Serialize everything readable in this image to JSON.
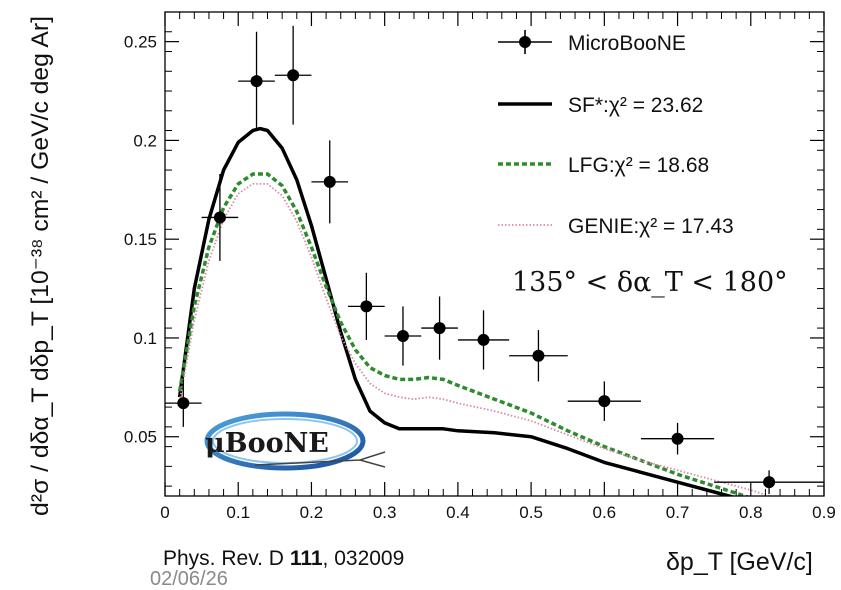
{
  "chart_data": {
    "type": "line",
    "xlabel": "δp_T [GeV/c]",
    "ylabel": "d²σ / dδα_T dδp_T  [10⁻³⁸ cm² / GeV/c deg Ar]",
    "xlim": [
      0,
      0.9
    ],
    "ylim": [
      0.02,
      0.265
    ],
    "x_ticks": [
      "0",
      "0.1",
      "0.2",
      "0.3",
      "0.4",
      "0.5",
      "0.6",
      "0.7",
      "0.8",
      "0.9"
    ],
    "y_ticks": [
      "0.05",
      "0.1",
      "0.15",
      "0.2",
      "0.25"
    ],
    "annotation": "135° < δα_T < 180°",
    "series": [
      {
        "name": "MicroBooNE",
        "legend_label": "MicroBooNE",
        "kind": "points",
        "color": "#000000",
        "x": [
          0.025,
          0.075,
          0.125,
          0.175,
          0.225,
          0.275,
          0.325,
          0.375,
          0.435,
          0.51,
          0.6,
          0.7,
          0.825
        ],
        "y": [
          0.067,
          0.161,
          0.23,
          0.233,
          0.179,
          0.116,
          0.101,
          0.105,
          0.099,
          0.091,
          0.068,
          0.049,
          0.027
        ],
        "xerr": [
          0.025,
          0.025,
          0.025,
          0.025,
          0.025,
          0.025,
          0.025,
          0.025,
          0.035,
          0.04,
          0.05,
          0.05,
          0.075
        ],
        "yerr": [
          0.012,
          0.022,
          0.025,
          0.025,
          0.021,
          0.017,
          0.015,
          0.016,
          0.015,
          0.013,
          0.01,
          0.008,
          0.006
        ]
      },
      {
        "name": "SF*",
        "legend_label": "SF*:χ² = 23.62",
        "kind": "line",
        "style": "solid",
        "color": "#000000",
        "x": [
          0.02,
          0.04,
          0.06,
          0.08,
          0.1,
          0.12,
          0.13,
          0.14,
          0.16,
          0.18,
          0.2,
          0.22,
          0.24,
          0.26,
          0.28,
          0.3,
          0.32,
          0.34,
          0.36,
          0.38,
          0.4,
          0.45,
          0.5,
          0.55,
          0.6,
          0.65,
          0.7,
          0.75,
          0.8,
          0.825
        ],
        "y": [
          0.07,
          0.125,
          0.16,
          0.185,
          0.199,
          0.205,
          0.206,
          0.205,
          0.196,
          0.18,
          0.157,
          0.13,
          0.103,
          0.079,
          0.063,
          0.057,
          0.054,
          0.054,
          0.054,
          0.054,
          0.053,
          0.052,
          0.05,
          0.044,
          0.037,
          0.032,
          0.027,
          0.022,
          0.017,
          0.015
        ]
      },
      {
        "name": "LFG",
        "legend_label": "LFG:χ² = 18.68",
        "kind": "line",
        "style": "dashed",
        "color": "#2e8b2e",
        "x": [
          0.02,
          0.04,
          0.06,
          0.08,
          0.1,
          0.12,
          0.14,
          0.16,
          0.18,
          0.2,
          0.22,
          0.24,
          0.26,
          0.28,
          0.3,
          0.32,
          0.34,
          0.36,
          0.38,
          0.4,
          0.45,
          0.5,
          0.55,
          0.6,
          0.65,
          0.7,
          0.75,
          0.8,
          0.825
        ],
        "y": [
          0.073,
          0.116,
          0.146,
          0.166,
          0.178,
          0.183,
          0.183,
          0.177,
          0.164,
          0.146,
          0.126,
          0.108,
          0.094,
          0.085,
          0.081,
          0.079,
          0.079,
          0.08,
          0.079,
          0.076,
          0.069,
          0.062,
          0.053,
          0.045,
          0.038,
          0.031,
          0.025,
          0.019,
          0.016
        ]
      },
      {
        "name": "GENIE",
        "legend_label": "GENIE:χ² = 17.43",
        "kind": "line",
        "style": "dotted",
        "color": "#d98aa6",
        "x": [
          0.02,
          0.04,
          0.06,
          0.08,
          0.1,
          0.12,
          0.14,
          0.16,
          0.18,
          0.2,
          0.22,
          0.24,
          0.26,
          0.28,
          0.3,
          0.32,
          0.34,
          0.36,
          0.38,
          0.4,
          0.45,
          0.5,
          0.55,
          0.6,
          0.65,
          0.7,
          0.75,
          0.8,
          0.825
        ],
        "y": [
          0.068,
          0.109,
          0.139,
          0.16,
          0.173,
          0.178,
          0.178,
          0.172,
          0.159,
          0.141,
          0.12,
          0.101,
          0.087,
          0.077,
          0.072,
          0.07,
          0.069,
          0.07,
          0.069,
          0.067,
          0.063,
          0.058,
          0.051,
          0.044,
          0.038,
          0.033,
          0.028,
          0.023,
          0.02
        ]
      }
    ]
  },
  "logo": {
    "text": "μBooNE"
  },
  "footer": {
    "citation_prefix": "Phys. Rev. D ",
    "citation_volume": "111",
    "citation_suffix": ", 032009",
    "date": "02/06/26"
  }
}
